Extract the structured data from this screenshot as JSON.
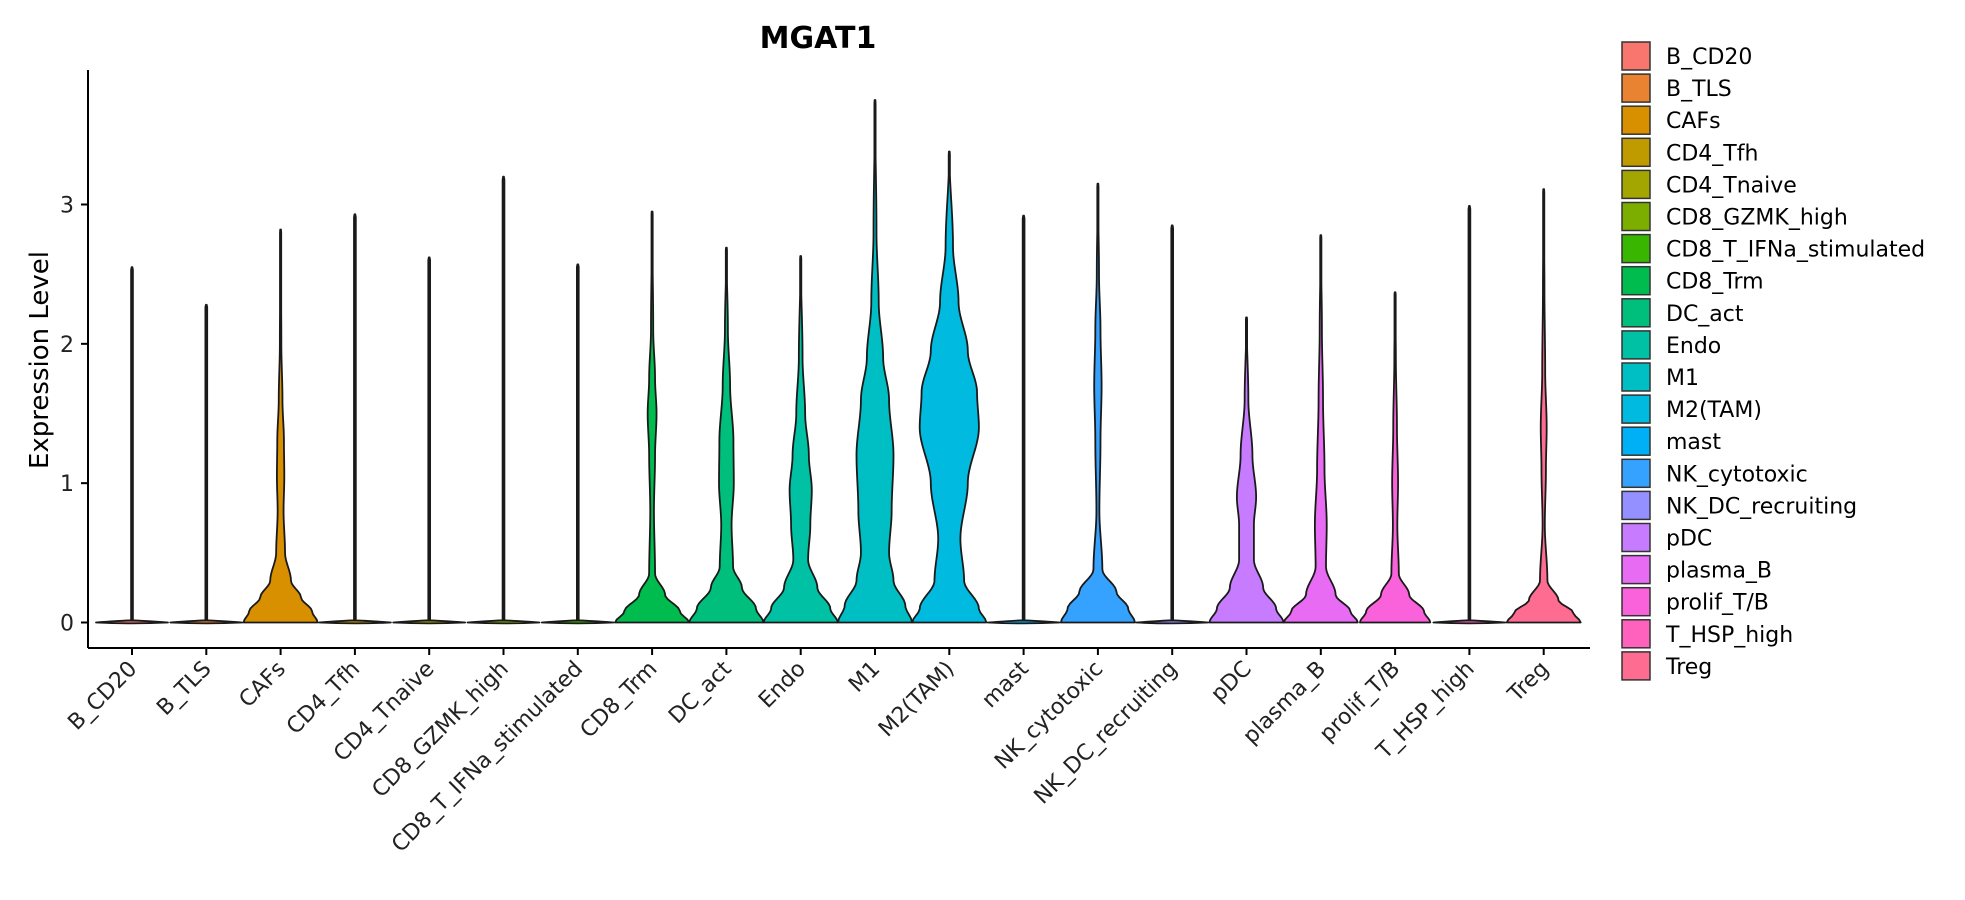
{
  "chart_data": {
    "type": "violin",
    "title": "MGAT1",
    "xlabel": "",
    "ylabel": "Expression Level",
    "ylim": [
      -0.18,
      3.95
    ],
    "yticks": [
      0,
      1,
      2,
      3
    ],
    "grid": false,
    "legend_position": "right",
    "categories": [
      "B_CD20",
      "B_TLS",
      "CAFs",
      "CD4_Tfh",
      "CD4_Tnaive",
      "CD8_GZMK_high",
      "CD8_T_IFNa_stimulated",
      "CD8_Trm",
      "DC_act",
      "Endo",
      "M1",
      "M2(TAM)",
      "mast",
      "NK_cytotoxic",
      "NK_DC_recruiting",
      "pDC",
      "plasma_B",
      "prolif_T/B",
      "T_HSP_high",
      "Treg"
    ],
    "colors": [
      "#F8766D",
      "#EA8331",
      "#D89000",
      "#C09B00",
      "#A3A500",
      "#7CAE00",
      "#39B600",
      "#00BB4E",
      "#00BF7D",
      "#00C1A3",
      "#00BFC4",
      "#00BAE0",
      "#00B0F6",
      "#35A2FF",
      "#9590FF",
      "#C77CFF",
      "#E76BF3",
      "#FA62DB",
      "#FF62BC",
      "#FF6C91"
    ],
    "violins": [
      {
        "name": "B_CD20",
        "max": 2.55,
        "profile": [
          [
            0,
            0.0
          ]
        ]
      },
      {
        "name": "B_TLS",
        "max": 2.28,
        "profile": [
          [
            0,
            0.0
          ]
        ]
      },
      {
        "name": "CAFs",
        "max": 2.82,
        "profile": [
          [
            0,
            1.0
          ],
          [
            0.08,
            0.85
          ],
          [
            0.18,
            0.55
          ],
          [
            0.3,
            0.28
          ],
          [
            0.5,
            0.12
          ],
          [
            0.8,
            0.08
          ],
          [
            1.05,
            0.1
          ],
          [
            1.3,
            0.09
          ],
          [
            1.6,
            0.05
          ],
          [
            2.0,
            0.02
          ],
          [
            2.82,
            0.0
          ]
        ]
      },
      {
        "name": "CD4_Tfh",
        "max": 2.93,
        "profile": [
          [
            0,
            0.0
          ]
        ]
      },
      {
        "name": "CD4_Tnaive",
        "max": 2.62,
        "profile": [
          [
            0,
            0.0
          ]
        ]
      },
      {
        "name": "CD8_GZMK_high",
        "max": 3.2,
        "profile": [
          [
            0,
            0.0
          ]
        ]
      },
      {
        "name": "CD8_T_IFNa_stimulated",
        "max": 2.57,
        "profile": [
          [
            0,
            0.0
          ]
        ]
      },
      {
        "name": "CD8_Trm",
        "max": 2.95,
        "profile": [
          [
            0,
            1.0
          ],
          [
            0.08,
            0.75
          ],
          [
            0.2,
            0.35
          ],
          [
            0.35,
            0.08
          ],
          [
            0.8,
            0.05
          ],
          [
            1.2,
            0.08
          ],
          [
            1.5,
            0.12
          ],
          [
            1.75,
            0.08
          ],
          [
            2.1,
            0.03
          ],
          [
            2.95,
            0.0
          ]
        ]
      },
      {
        "name": "DC_act",
        "max": 2.69,
        "profile": [
          [
            0,
            1.0
          ],
          [
            0.1,
            0.8
          ],
          [
            0.25,
            0.42
          ],
          [
            0.4,
            0.18
          ],
          [
            0.7,
            0.14
          ],
          [
            1.0,
            0.2
          ],
          [
            1.3,
            0.19
          ],
          [
            1.7,
            0.1
          ],
          [
            2.1,
            0.04
          ],
          [
            2.69,
            0.0
          ]
        ]
      },
      {
        "name": "Endo",
        "max": 2.63,
        "profile": [
          [
            0,
            1.0
          ],
          [
            0.1,
            0.8
          ],
          [
            0.25,
            0.45
          ],
          [
            0.45,
            0.2
          ],
          [
            0.7,
            0.26
          ],
          [
            0.95,
            0.3
          ],
          [
            1.2,
            0.22
          ],
          [
            1.5,
            0.12
          ],
          [
            1.9,
            0.05
          ],
          [
            2.63,
            0.0
          ]
        ]
      },
      {
        "name": "M1",
        "max": 3.75,
        "profile": [
          [
            0,
            1.0
          ],
          [
            0.12,
            0.82
          ],
          [
            0.3,
            0.5
          ],
          [
            0.5,
            0.38
          ],
          [
            0.8,
            0.45
          ],
          [
            1.2,
            0.5
          ],
          [
            1.6,
            0.38
          ],
          [
            1.9,
            0.22
          ],
          [
            2.3,
            0.1
          ],
          [
            2.8,
            0.04
          ],
          [
            3.75,
            0.0
          ]
        ]
      },
      {
        "name": "M2(TAM)",
        "max": 3.38,
        "profile": [
          [
            0,
            1.0
          ],
          [
            0.1,
            0.8
          ],
          [
            0.3,
            0.4
          ],
          [
            0.6,
            0.3
          ],
          [
            1.0,
            0.5
          ],
          [
            1.4,
            0.8
          ],
          [
            1.65,
            0.75
          ],
          [
            1.95,
            0.5
          ],
          [
            2.3,
            0.25
          ],
          [
            2.7,
            0.1
          ],
          [
            3.38,
            0.0
          ]
        ]
      },
      {
        "name": "mast",
        "max": 2.92,
        "profile": [
          [
            0,
            0.0
          ]
        ]
      },
      {
        "name": "NK_cytotoxic",
        "max": 3.15,
        "profile": [
          [
            0,
            1.0
          ],
          [
            0.1,
            0.82
          ],
          [
            0.22,
            0.5
          ],
          [
            0.38,
            0.12
          ],
          [
            0.8,
            0.04
          ],
          [
            1.3,
            0.07
          ],
          [
            1.7,
            0.1
          ],
          [
            2.1,
            0.07
          ],
          [
            2.5,
            0.03
          ],
          [
            3.15,
            0.0
          ]
        ]
      },
      {
        "name": "NK_DC_recruiting",
        "max": 2.85,
        "profile": [
          [
            0,
            0.0
          ]
        ]
      },
      {
        "name": "pDC",
        "max": 2.19,
        "profile": [
          [
            0,
            1.0
          ],
          [
            0.1,
            0.8
          ],
          [
            0.25,
            0.45
          ],
          [
            0.45,
            0.2
          ],
          [
            0.7,
            0.2
          ],
          [
            0.9,
            0.26
          ],
          [
            1.2,
            0.16
          ],
          [
            1.6,
            0.05
          ],
          [
            2.19,
            0.0
          ]
        ]
      },
      {
        "name": "plasma_B",
        "max": 2.78,
        "profile": [
          [
            0,
            1.0
          ],
          [
            0.08,
            0.8
          ],
          [
            0.2,
            0.4
          ],
          [
            0.4,
            0.14
          ],
          [
            0.7,
            0.16
          ],
          [
            1.1,
            0.1
          ],
          [
            1.6,
            0.06
          ],
          [
            2.1,
            0.03
          ],
          [
            2.78,
            0.0
          ]
        ]
      },
      {
        "name": "prolif_T/B",
        "max": 2.37,
        "profile": [
          [
            0,
            0.95
          ],
          [
            0.08,
            0.78
          ],
          [
            0.2,
            0.38
          ],
          [
            0.35,
            0.1
          ],
          [
            0.7,
            0.06
          ],
          [
            1.0,
            0.08
          ],
          [
            1.4,
            0.05
          ],
          [
            1.9,
            0.02
          ],
          [
            2.37,
            0.0
          ]
        ]
      },
      {
        "name": "T_HSP_high",
        "max": 2.99,
        "profile": [
          [
            0,
            0.0
          ]
        ]
      },
      {
        "name": "Treg",
        "max": 3.11,
        "profile": [
          [
            0,
            1.0
          ],
          [
            0.07,
            0.8
          ],
          [
            0.16,
            0.4
          ],
          [
            0.3,
            0.1
          ],
          [
            0.7,
            0.03
          ],
          [
            1.1,
            0.06
          ],
          [
            1.4,
            0.08
          ],
          [
            1.8,
            0.04
          ],
          [
            2.4,
            0.02
          ],
          [
            3.11,
            0.0
          ]
        ]
      }
    ]
  }
}
